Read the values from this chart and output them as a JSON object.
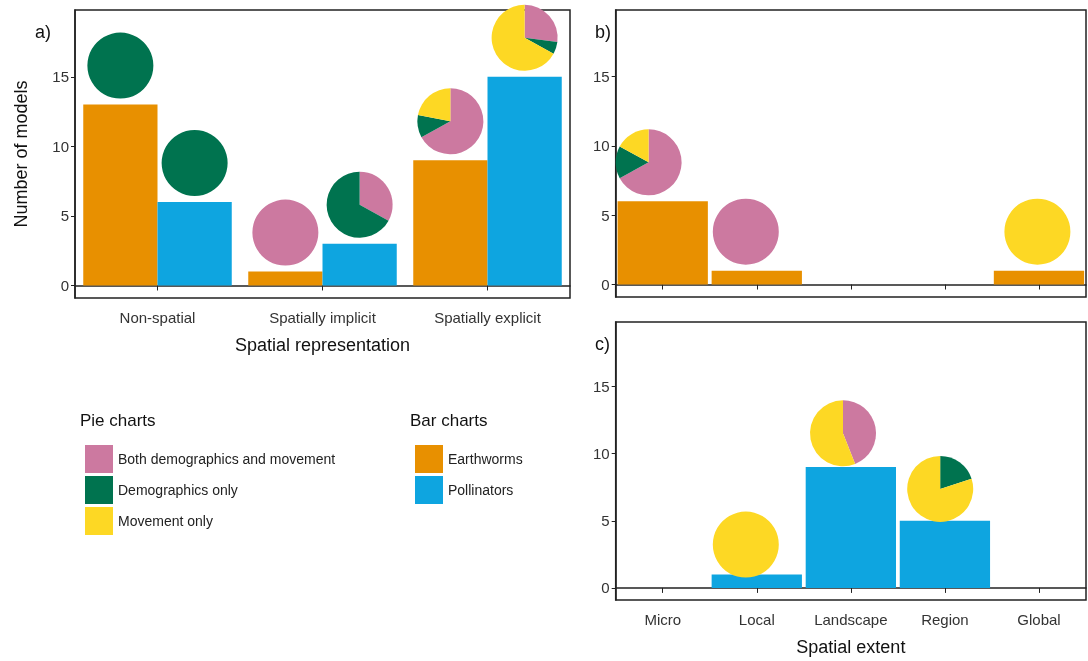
{
  "chart_data": [
    {
      "type": "bar",
      "title": "a)",
      "xlabel": "Spatial representation",
      "ylabel": "Number of models",
      "categories": [
        "Non-spatial",
        "Spatially implicit",
        "Spatially explicit"
      ],
      "ylim": [
        -0.9,
        19.8
      ],
      "yticks": [
        0,
        5,
        10,
        15
      ],
      "legend": "bottom right",
      "legend_title": "Bar charts",
      "series": [
        {
          "name": "Earthworms",
          "color": "#e89000",
          "values": [
            13,
            1,
            9
          ]
        },
        {
          "name": "Pollinators",
          "color": "#0ea5e0",
          "values": [
            6,
            3,
            15
          ]
        }
      ]
    },
    {
      "type": "bar",
      "title": "b)",
      "categories": [
        null,
        null,
        null,
        null,
        null
      ],
      "ylim": [
        -0.9,
        19.8
      ],
      "yticks": [
        0,
        5,
        10,
        15
      ],
      "tick_labels": "y",
      "series": [
        {
          "color": "#e89000",
          "values": [
            6,
            1,
            null,
            null,
            1
          ]
        }
      ]
    },
    {
      "type": "bar",
      "title": "c)",
      "xlabel": "Spatial extent",
      "categories": [
        "Micro",
        "Local",
        "Landscape",
        "Region",
        "Global"
      ],
      "ylim": [
        -0.9,
        19.8
      ],
      "yticks": [
        0,
        5,
        10,
        15
      ],
      "series": [
        {
          "color": "#0ea5e0",
          "values": [
            null,
            1,
            9,
            5,
            null
          ]
        }
      ]
    },
    {
      "type": "pie",
      "legend": "bottom right",
      "legend_title": "Pie charts",
      "categories": [
        "Both demographics and movement",
        "Demographics only",
        "Movement only"
      ],
      "colors": [
        "#cc79a0",
        "#00734f",
        "#fdd824"
      ],
      "values": [
        0,
        100,
        0
      ]
    },
    {
      "type": "pie",
      "colors": [
        "#cc79a0",
        "#00734f",
        "#fdd824"
      ],
      "values": [
        0,
        100,
        0
      ]
    },
    {
      "type": "pie",
      "colors": [
        "#cc79a0",
        "#00734f",
        "#fdd824"
      ],
      "values": [
        100,
        0,
        0
      ]
    },
    {
      "type": "pie",
      "colors": [
        "#cc79a0",
        "#00734f",
        "#fdd824"
      ],
      "values": [
        33,
        67,
        0
      ]
    },
    {
      "type": "pie",
      "colors": [
        "#cc79a0",
        "#00734f",
        "#fdd824"
      ],
      "values": [
        67,
        11,
        22
      ]
    },
    {
      "type": "pie",
      "colors": [
        "#cc79a0",
        "#00734f",
        "#fdd824"
      ],
      "values": [
        27,
        6,
        67
      ]
    },
    {
      "type": "pie",
      "colors": [
        "#cc79a0",
        "#00734f",
        "#fdd824"
      ],
      "values": [
        67,
        16,
        17
      ]
    },
    {
      "type": "pie",
      "colors": [
        "#cc79a0",
        "#00734f",
        "#fdd824"
      ],
      "values": [
        100,
        0,
        0
      ]
    },
    {
      "type": "pie",
      "colors": [
        "#cc79a0",
        "#00734f",
        "#fdd824"
      ],
      "values": [
        0,
        0,
        100
      ]
    },
    {
      "type": "pie",
      "colors": [
        "#cc79a0",
        "#00734f",
        "#fdd824"
      ],
      "values": [
        0,
        0,
        100
      ]
    },
    {
      "type": "pie",
      "colors": [
        "#cc79a0",
        "#00734f",
        "#fdd824"
      ],
      "values": [
        44,
        0,
        56
      ]
    },
    {
      "type": "pie",
      "colors": [
        "#cc79a0",
        "#00734f",
        "#fdd824"
      ],
      "values": [
        0,
        20,
        80
      ]
    }
  ]
}
